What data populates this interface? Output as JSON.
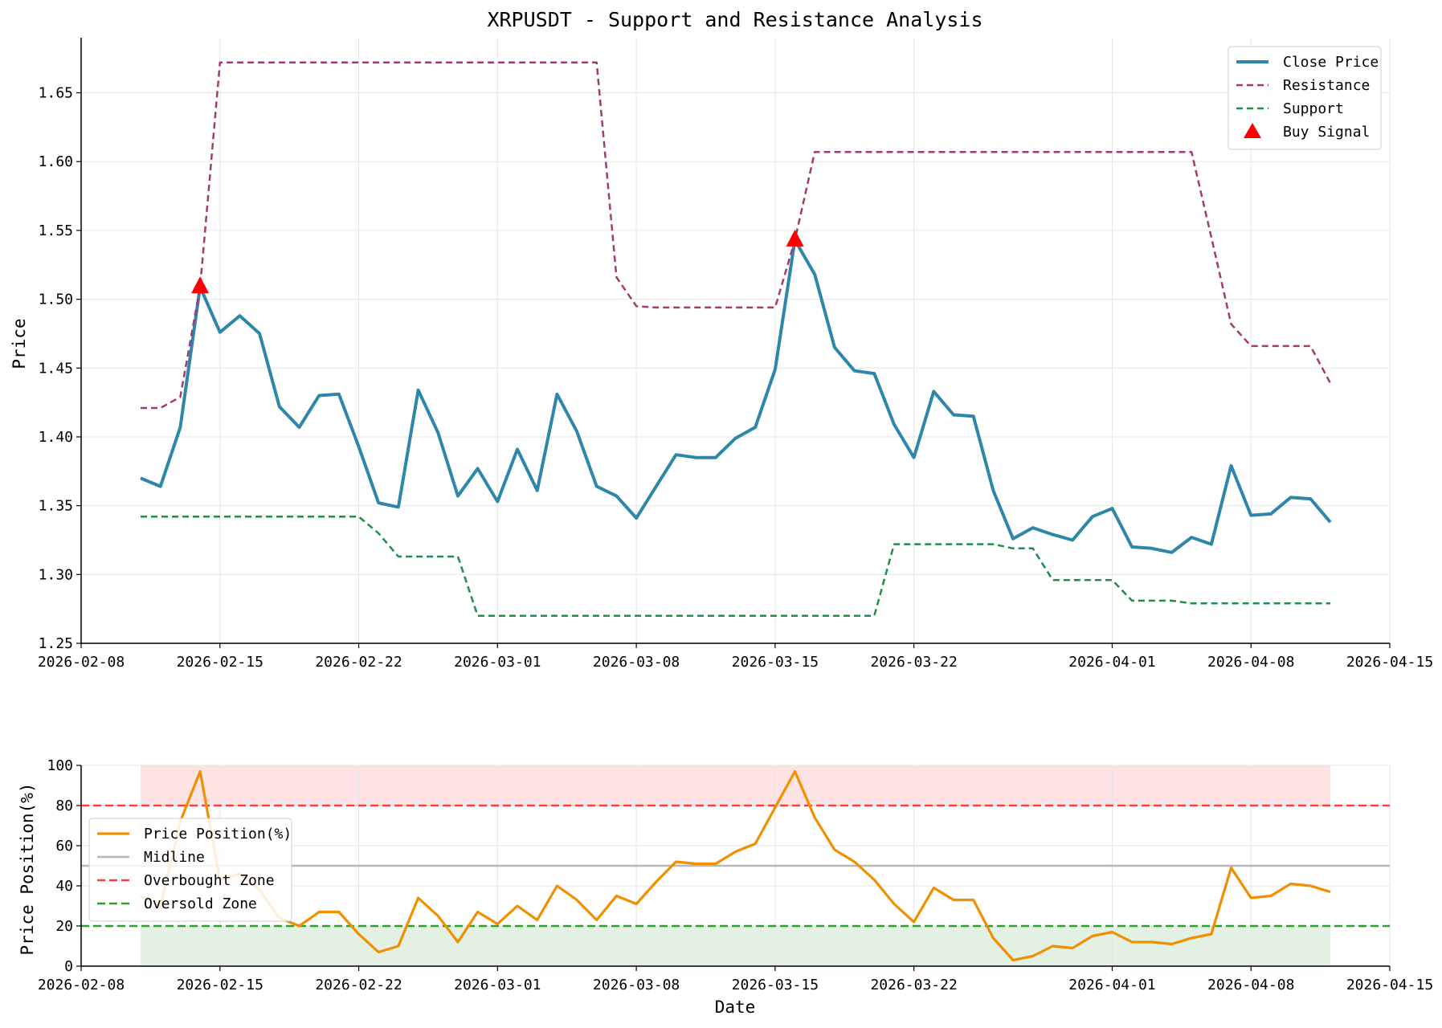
{
  "colors": {
    "close": "#2e86ab",
    "resistance": "#a23b72",
    "support": "#1e8e4a",
    "buy": "#ff0000",
    "position": "#f18f01",
    "midline": "#b8b8b8",
    "overbought": "#ff3b3b",
    "oversold": "#2ca02c",
    "overbought_fill": "#fde3e3",
    "oversold_fill": "#e3f1e3",
    "grid": "#e6e6e6"
  },
  "chart_data": [
    {
      "type": "line",
      "title": "XRPUSDT - Support and Resistance Analysis",
      "xlabel": "",
      "ylabel": "Price",
      "xlim": [
        "2026-02-08",
        "2026-04-15"
      ],
      "ylim": [
        1.25,
        1.69
      ],
      "xticks": [
        "2026-02-08",
        "2026-02-15",
        "2026-02-22",
        "2026-03-01",
        "2026-03-08",
        "2026-03-15",
        "2026-03-22",
        "2026-04-01",
        "2026-04-08",
        "2026-04-15"
      ],
      "yticks": [
        "1.25",
        "1.30",
        "1.35",
        "1.40",
        "1.45",
        "1.50",
        "1.55",
        "1.60",
        "1.65"
      ],
      "grid": true,
      "legend_position": "top-right",
      "x_start": "2026-02-11",
      "series": [
        {
          "name": "Close Price",
          "style": "solid",
          "values": [
            1.37,
            1.364,
            1.407,
            1.509,
            1.476,
            1.488,
            1.475,
            1.422,
            1.407,
            1.43,
            1.431,
            1.393,
            1.352,
            1.349,
            1.434,
            1.403,
            1.357,
            1.377,
            1.353,
            1.391,
            1.361,
            1.431,
            1.404,
            1.364,
            1.357,
            1.341,
            1.364,
            1.387,
            1.385,
            1.385,
            1.399,
            1.407,
            1.449,
            1.543,
            1.518,
            1.465,
            1.448,
            1.446,
            1.409,
            1.385,
            1.433,
            1.416,
            1.415,
            1.361,
            1.326,
            1.334,
            1.329,
            1.325,
            1.342,
            1.348,
            1.32,
            1.319,
            1.316,
            1.327,
            1.322,
            1.379,
            1.343,
            1.344,
            1.356,
            1.355,
            1.338
          ]
        },
        {
          "name": "Resistance",
          "style": "dashed",
          "values": [
            1.421,
            1.421,
            1.429,
            1.509,
            1.672,
            1.672,
            1.672,
            1.672,
            1.672,
            1.672,
            1.672,
            1.672,
            1.672,
            1.672,
            1.672,
            1.672,
            1.672,
            1.672,
            1.672,
            1.672,
            1.672,
            1.672,
            1.672,
            1.672,
            1.516,
            1.495,
            1.494,
            1.494,
            1.494,
            1.494,
            1.494,
            1.494,
            1.494,
            1.543,
            1.607,
            1.607,
            1.607,
            1.607,
            1.607,
            1.607,
            1.607,
            1.607,
            1.607,
            1.607,
            1.607,
            1.607,
            1.607,
            1.607,
            1.607,
            1.607,
            1.607,
            1.607,
            1.607,
            1.607,
            1.545,
            1.482,
            1.466,
            1.466,
            1.466,
            1.466,
            1.439
          ]
        },
        {
          "name": "Support",
          "style": "dashed",
          "values": [
            1.342,
            1.342,
            1.342,
            1.342,
            1.342,
            1.342,
            1.342,
            1.342,
            1.342,
            1.342,
            1.342,
            1.342,
            1.33,
            1.313,
            1.313,
            1.313,
            1.313,
            1.27,
            1.27,
            1.27,
            1.27,
            1.27,
            1.27,
            1.27,
            1.27,
            1.27,
            1.27,
            1.27,
            1.27,
            1.27,
            1.27,
            1.27,
            1.27,
            1.27,
            1.27,
            1.27,
            1.27,
            1.27,
            1.322,
            1.322,
            1.322,
            1.322,
            1.322,
            1.322,
            1.319,
            1.319,
            1.296,
            1.296,
            1.296,
            1.296,
            1.281,
            1.281,
            1.281,
            1.279,
            1.279,
            1.279,
            1.279,
            1.279,
            1.279,
            1.279,
            1.279
          ]
        }
      ],
      "buy_signals": {
        "name": "Buy Signal",
        "points": [
          {
            "x": "2026-02-14",
            "y": 1.509
          },
          {
            "x": "2026-03-16",
            "y": 1.543
          }
        ]
      }
    },
    {
      "type": "line",
      "title": "",
      "xlabel": "Date",
      "ylabel": "Price Position(%)",
      "xlim": [
        "2026-02-08",
        "2026-04-15"
      ],
      "ylim": [
        0,
        100
      ],
      "xticks": [
        "2026-02-08",
        "2026-02-15",
        "2026-02-22",
        "2026-03-01",
        "2026-03-08",
        "2026-03-15",
        "2026-03-22",
        "2026-04-01",
        "2026-04-08",
        "2026-04-15"
      ],
      "yticks": [
        "0",
        "20",
        "40",
        "60",
        "80",
        "100"
      ],
      "grid": true,
      "legend_position": "center-left",
      "x_start": "2026-02-11",
      "zones": [
        {
          "from": 80,
          "to": 100,
          "x_from": "2026-02-11",
          "x_to": "2026-04-12"
        },
        {
          "from": 0,
          "to": 20,
          "x_from": "2026-02-11",
          "x_to": "2026-04-12"
        }
      ],
      "hlines": [
        {
          "name": "Midline",
          "y": 50,
          "style": "solid"
        },
        {
          "name": "Overbought Zone",
          "y": 80,
          "style": "dashed"
        },
        {
          "name": "Oversold Zone",
          "y": 20,
          "style": "dashed"
        }
      ],
      "series": [
        {
          "name": "Price Position(%)",
          "style": "solid",
          "values": [
            35,
            30,
            72,
            97,
            43,
            46,
            38,
            24,
            20,
            27,
            27,
            16,
            7,
            10,
            34,
            25,
            12,
            27,
            21,
            30,
            23,
            40,
            33,
            23,
            35,
            31,
            42,
            52,
            51,
            51,
            57,
            61,
            79,
            97,
            74,
            58,
            52,
            43,
            31,
            22,
            39,
            33,
            33,
            14,
            3,
            5,
            10,
            9,
            15,
            17,
            12,
            12,
            11,
            14,
            16,
            49,
            34,
            35,
            41,
            40,
            37
          ]
        }
      ]
    }
  ]
}
